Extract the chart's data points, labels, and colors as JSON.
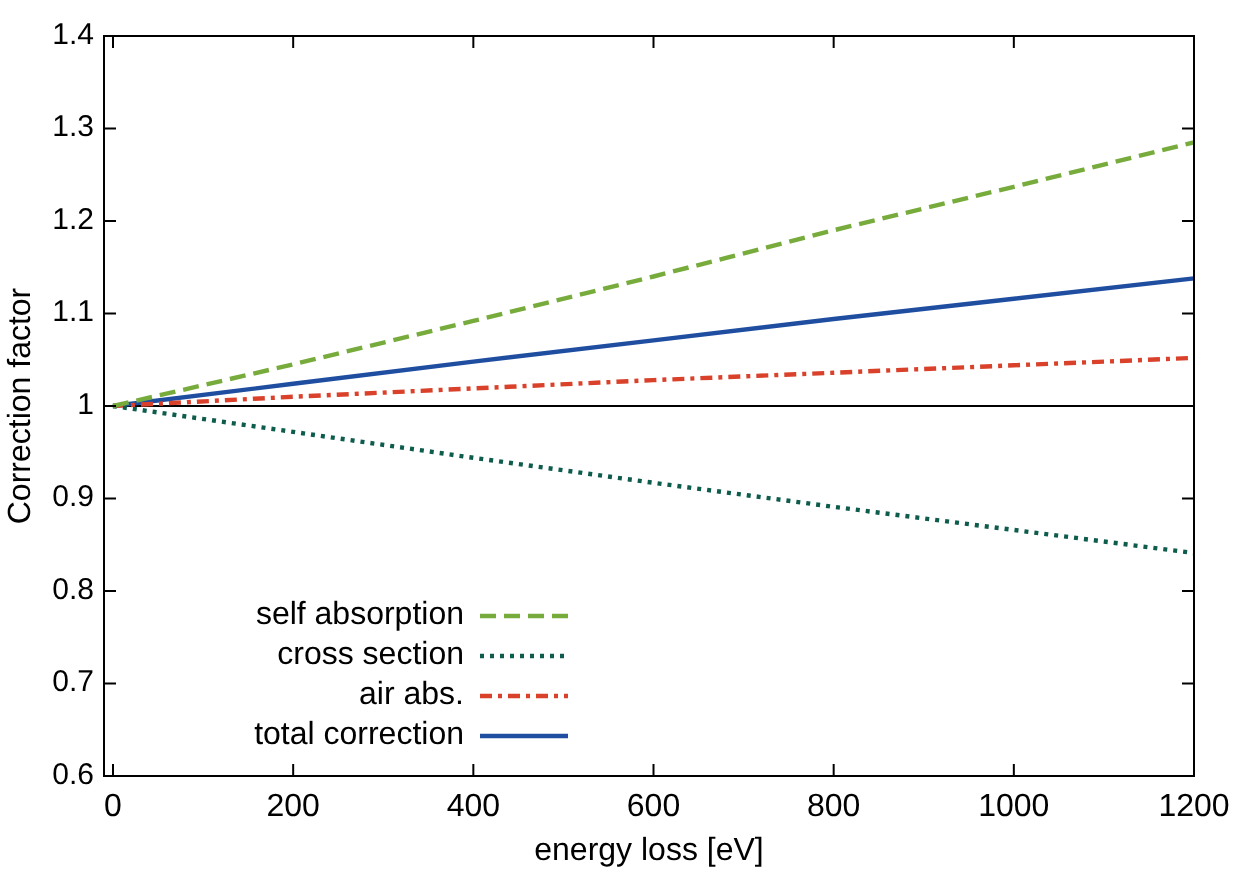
{
  "chart_data": {
    "type": "line",
    "xlabel": "energy loss [eV]",
    "ylabel": "Correction factor",
    "xlim": [
      -10,
      1200
    ],
    "xticks": [
      0,
      200,
      400,
      600,
      800,
      1000,
      1200
    ],
    "ylim": [
      0.6,
      1.4
    ],
    "yticks": [
      0.6,
      0.7,
      0.8,
      0.9,
      1,
      1.1,
      1.2,
      1.3,
      1.4
    ],
    "grid": false,
    "legend": "bottom left",
    "x": [
      0,
      200,
      400,
      600,
      800,
      1000,
      1200
    ],
    "series": [
      {
        "name": "self absorption",
        "color": "#77ac3d",
        "line_style": "dashed",
        "values": [
          1,
          1.045,
          1.092,
          1.14,
          1.19,
          1.237,
          1.285
        ]
      },
      {
        "name": "cross section",
        "color": "#0d5c4c",
        "line_style": "dotted",
        "values": [
          1,
          0.972,
          0.944,
          0.917,
          0.891,
          0.866,
          0.841
        ]
      },
      {
        "name": "air abs.",
        "color": "#d9412b",
        "line_style": "dashdot",
        "values": [
          1,
          1.01,
          1.019,
          1.028,
          1.036,
          1.044,
          1.052
        ]
      },
      {
        "name": "total correction",
        "color": "#1f4ea1",
        "line_style": "solid",
        "values": [
          1,
          1.024,
          1.048,
          1.071,
          1.094,
          1.116,
          1.138
        ]
      }
    ],
    "ref_lines": [
      {
        "axis": "y",
        "value": 1,
        "color": "#000000"
      }
    ]
  }
}
